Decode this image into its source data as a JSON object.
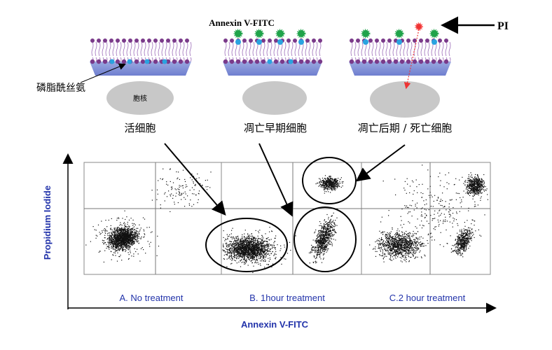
{
  "top": {
    "annexin_label": "Annexin V-FITC",
    "pi_label": "PI",
    "ps_label": "磷脂酰丝氨",
    "nucleus_label": "胞核",
    "stages": [
      "活细胞",
      "凋亡早期细胞",
      "凋亡后期 / 死亡细胞"
    ]
  },
  "plot": {
    "y_axis": "Propidium Iodide",
    "x_axis": "Annexin V-FITC",
    "panels": [
      "A. No treatment",
      "B.  1hour treatment",
      "C.2 hour treatment"
    ]
  }
}
